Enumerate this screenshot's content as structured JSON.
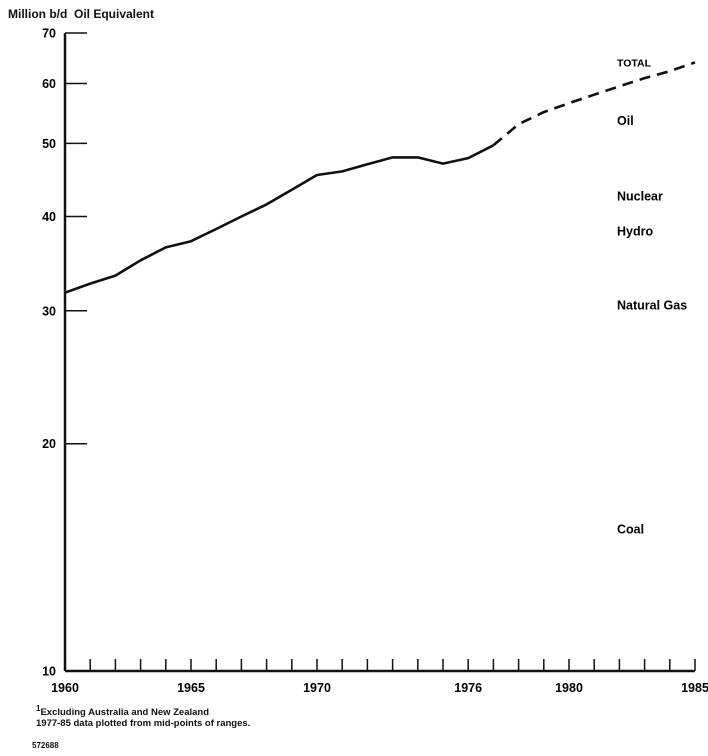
{
  "chart_data": {
    "type": "line",
    "title": "",
    "ylabel": "Million b/d  Oil Equivalent",
    "xlabel": "",
    "y_scale": "log",
    "ylim": [
      10,
      70
    ],
    "xlim": [
      1960,
      1985
    ],
    "y_ticks": [
      10,
      20,
      30,
      40,
      50,
      60,
      70
    ],
    "x_tick_labels": [
      1960,
      1965,
      1970,
      1976,
      1980,
      1985
    ],
    "grid": false,
    "series": [
      {
        "name": "TOTAL",
        "style": "solid",
        "points": [
          {
            "x": 1960,
            "y": 31.7
          },
          {
            "x": 1961,
            "y": 32.6
          },
          {
            "x": 1962,
            "y": 33.4
          },
          {
            "x": 1963,
            "y": 35.0
          },
          {
            "x": 1964,
            "y": 36.4
          },
          {
            "x": 1965,
            "y": 37.1
          },
          {
            "x": 1966,
            "y": 38.5
          },
          {
            "x": 1967,
            "y": 40.0
          },
          {
            "x": 1968,
            "y": 41.5
          },
          {
            "x": 1969,
            "y": 43.4
          },
          {
            "x": 1970,
            "y": 45.4
          },
          {
            "x": 1971,
            "y": 45.9
          },
          {
            "x": 1972,
            "y": 46.9
          },
          {
            "x": 1973,
            "y": 47.9
          },
          {
            "x": 1974,
            "y": 47.9
          },
          {
            "x": 1975,
            "y": 47.0
          },
          {
            "x": 1976,
            "y": 47.8
          },
          {
            "x": 1977,
            "y": 49.7
          }
        ]
      },
      {
        "name": "TOTAL",
        "style": "dashed",
        "points": [
          {
            "x": 1977,
            "y": 49.7
          },
          {
            "x": 1978,
            "y": 53.0
          },
          {
            "x": 1979,
            "y": 55.0
          },
          {
            "x": 1980,
            "y": 56.5
          },
          {
            "x": 1981,
            "y": 58.0
          },
          {
            "x": 1982,
            "y": 59.5
          },
          {
            "x": 1983,
            "y": 61.0
          },
          {
            "x": 1984,
            "y": 62.3
          },
          {
            "x": 1985,
            "y": 64.0
          }
        ]
      }
    ],
    "annotations": [
      {
        "text": "TOTAL",
        "y": 64.0
      },
      {
        "text": "Oil",
        "y": 53.5
      },
      {
        "text": "Nuclear",
        "y": 42.5
      },
      {
        "text": "Hydro",
        "y": 38.2
      },
      {
        "text": "Natural Gas",
        "y": 30.5
      },
      {
        "text": "Coal",
        "y": 15.4
      }
    ]
  },
  "footnote": {
    "marker": "1",
    "line1": "Excluding Australia and New Zealand",
    "line2": "1977-85 data plotted from mid-points of ranges."
  },
  "doc_id": "572688"
}
